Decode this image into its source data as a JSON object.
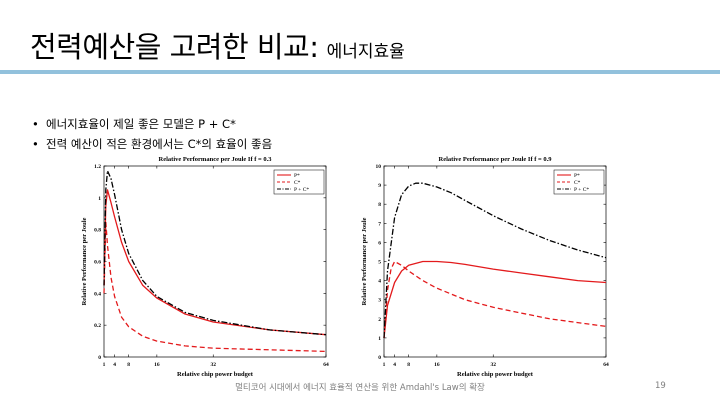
{
  "slide": {
    "title_main": "전력예산을 고려한 비교:",
    "title_sub": "에너지효율",
    "bullets": [
      "에너지효율이 제일 좋은 모델은 P + C*",
      "전력 예산이 적은 환경에서는 C*의 효율이 좋음"
    ],
    "footer": "멀티코어 시대에서 에너지 효율적 연산을 위한 Amdahl's Law의 확장",
    "page_number": "19"
  },
  "colors": {
    "rule": "#92c1dc",
    "red": "#e31a1c",
    "black": "#000000"
  },
  "chart_data": [
    {
      "type": "line",
      "title": "Relative Performance per Joule If f = 0.3",
      "xlabel": "Relative chip power budget",
      "ylabel": "Relative Performance per Joule",
      "xlim": [
        1,
        64
      ],
      "ylim": [
        0,
        1.2
      ],
      "x_ticks": [
        "1",
        "4",
        "8",
        "16",
        "32",
        "64"
      ],
      "y_ticks": [
        "0",
        "0.2",
        "0.4",
        "0.6",
        "0.8",
        "1",
        "1.2"
      ],
      "legend": "top-right",
      "series": [
        {
          "name": "P*",
          "style": "solid",
          "color": "red",
          "x": [
            1,
            1.5,
            2,
            3,
            4,
            6,
            8,
            12,
            16,
            24,
            32,
            48,
            64
          ],
          "y": [
            0.45,
            0.95,
            1.05,
            0.97,
            0.88,
            0.72,
            0.6,
            0.45,
            0.37,
            0.27,
            0.22,
            0.17,
            0.14
          ]
        },
        {
          "name": "C*",
          "style": "dashed",
          "color": "red",
          "x": [
            1,
            1.5,
            2,
            3,
            4,
            6,
            8,
            12,
            16,
            24,
            32,
            48,
            64
          ],
          "y": [
            0.4,
            0.85,
            0.7,
            0.5,
            0.38,
            0.25,
            0.19,
            0.13,
            0.1,
            0.07,
            0.055,
            0.045,
            0.035
          ]
        },
        {
          "name": "P + C*",
          "style": "dashdot",
          "color": "black",
          "x": [
            1,
            1.5,
            2,
            3,
            4,
            6,
            8,
            12,
            16,
            24,
            32,
            48,
            64
          ],
          "y": [
            0.45,
            1.05,
            1.17,
            1.12,
            1.02,
            0.8,
            0.65,
            0.48,
            0.38,
            0.28,
            0.23,
            0.17,
            0.14
          ]
        }
      ]
    },
    {
      "type": "line",
      "title": "Relative Performance per Joule If f = 0.9",
      "xlabel": "Relative chip power budget",
      "ylabel": "Relative Performance per Joule",
      "xlim": [
        1,
        64
      ],
      "ylim": [
        0,
        10
      ],
      "x_ticks": [
        "1",
        "4",
        "8",
        "16",
        "32",
        "64"
      ],
      "y_ticks": [
        "0",
        "1",
        "2",
        "3",
        "4",
        "5",
        "6",
        "7",
        "8",
        "9",
        "10"
      ],
      "legend": "top-right",
      "series": [
        {
          "name": "P*",
          "style": "solid",
          "color": "red",
          "x": [
            1,
            2,
            4,
            6,
            8,
            12,
            16,
            20,
            24,
            32,
            40,
            48,
            56,
            64
          ],
          "y": [
            1,
            2.7,
            3.9,
            4.5,
            4.8,
            5.0,
            5.0,
            4.95,
            4.85,
            4.6,
            4.4,
            4.2,
            4.0,
            3.9
          ]
        },
        {
          "name": "C*",
          "style": "dashed",
          "color": "red",
          "x": [
            1,
            2,
            3,
            4,
            6,
            8,
            12,
            16,
            24,
            32,
            40,
            48,
            56,
            64
          ],
          "y": [
            1,
            3.5,
            4.6,
            5.0,
            4.8,
            4.5,
            4.0,
            3.6,
            3.0,
            2.6,
            2.3,
            2.0,
            1.8,
            1.6
          ]
        },
        {
          "name": "P + C*",
          "style": "dashdot",
          "color": "black",
          "x": [
            1,
            2,
            4,
            6,
            8,
            10,
            12,
            16,
            20,
            24,
            32,
            40,
            48,
            56,
            64
          ],
          "y": [
            1,
            4.5,
            7.3,
            8.5,
            8.95,
            9.1,
            9.1,
            8.9,
            8.6,
            8.2,
            7.4,
            6.7,
            6.1,
            5.6,
            5.2
          ]
        }
      ]
    }
  ]
}
